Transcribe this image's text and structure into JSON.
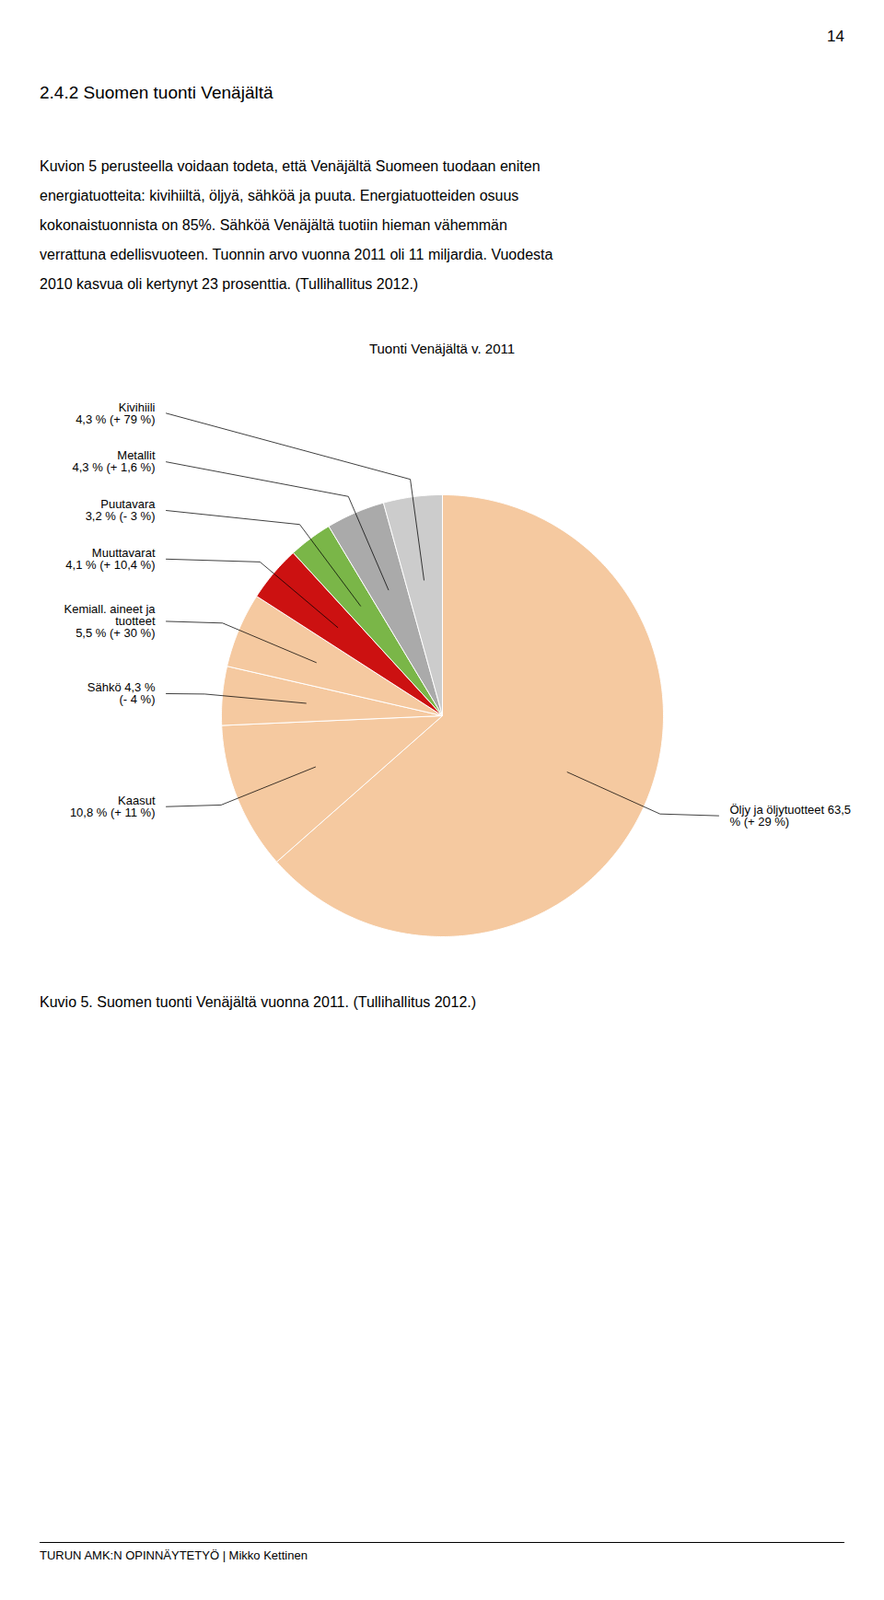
{
  "chart_data": {
    "type": "pie",
    "title": "Tuonti Venäjältä v. 2011",
    "categories": [
      "Öljy ja öljytuotteet 63,5\n% (+ 29 %)",
      "Kaasut\n10,8 % (+ 11 %)",
      "Sähkö 4,3 %\n(- 4 %)",
      "Kemiall. aineet ja\ntuotteet\n5,5 % (+ 30 %)",
      "Muuttavarat\n4,1 % (+ 10,4 %)",
      "Puutavara\n3,2 % (- 3 %)",
      "Metallit\n4,3 % (+ 1,6 %)",
      "Kivihiili\n4,3 % (+ 79 %)"
    ],
    "values": [
      63.5,
      10.8,
      4.3,
      5.5,
      4.1,
      3.2,
      4.3,
      4.3
    ],
    "colors": [
      "#F5C9A0",
      "#F5C9A0",
      "#F5C9A0",
      "#F5C9A0",
      "#CC1111",
      "#7AB648",
      "#AAAAAA",
      "#CCCCCC"
    ],
    "caption": "Kuvio 5. Suomen tuonti Venäjältä vuonna 2011. (Tullihallitus 2012.)"
  },
  "page_number": "14",
  "heading": "2.4.2 Suomen tuonti Venäjältä",
  "body_lines": [
    "Kuvion 5 perusteella voidaan todeta, että Venäjältä Suomeen tuodaan eniten",
    "energiatuotteita: kivihiiltä, öljyä, sähköä ja puuta. Energiatuotteiden osuus",
    "kokonaistuonnista on 85%. Sähköä Venäjältä tuotiin hieman vähemmän",
    "verrattuna edellisvuoteen. Tuonnin arvo vuonna 2011 oli 11 miljardia. Vuodesta",
    "2010 kasvua oli kertynyt 23 prosenttia. (Tullihallitus 2012.)"
  ],
  "footer": "TURUN AMK:N OPINNÄYTETYÖ | Mikko Kettinen"
}
